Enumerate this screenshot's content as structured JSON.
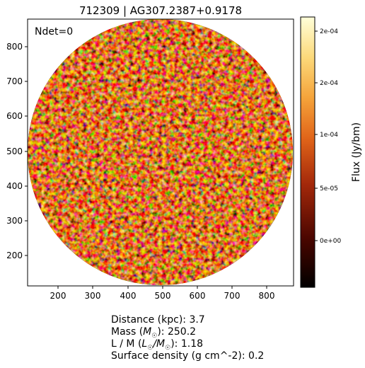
{
  "title": "712309 | AG307.2387+0.9178",
  "annotation": "Ndet=0",
  "x_axis": {
    "ticks": [
      "200",
      "300",
      "400",
      "500",
      "600",
      "700",
      "800"
    ]
  },
  "y_axis": {
    "ticks": [
      "200",
      "300",
      "400",
      "500",
      "600",
      "700",
      "800"
    ]
  },
  "colorbar": {
    "label": "Flux (Jy/bm)",
    "ticks": [
      "0e+00",
      "5e-05",
      "1e-04",
      "2e-04",
      "2e-04"
    ],
    "colormap": "afmhot",
    "colors": [
      "#000000",
      "#4a0600",
      "#a3280a",
      "#e06419",
      "#f5a33a",
      "#fcd97a",
      "#ffffd9"
    ]
  },
  "caption": {
    "distance_label": "Distance (kpc): ",
    "distance_value": "3.7",
    "mass_label_pre": "Mass (",
    "mass_symbol": "M",
    "mass_label_post": "): ",
    "mass_value": "250.2",
    "lm_label_pre": "L / M (",
    "lm_symbol_l": "L",
    "lm_slash": "/",
    "lm_symbol_m": "M",
    "lm_label_post": "): ",
    "lm_value": "1.18",
    "sd_label": "Surface density (g cm^-2): ",
    "sd_value": "0.2"
  }
}
